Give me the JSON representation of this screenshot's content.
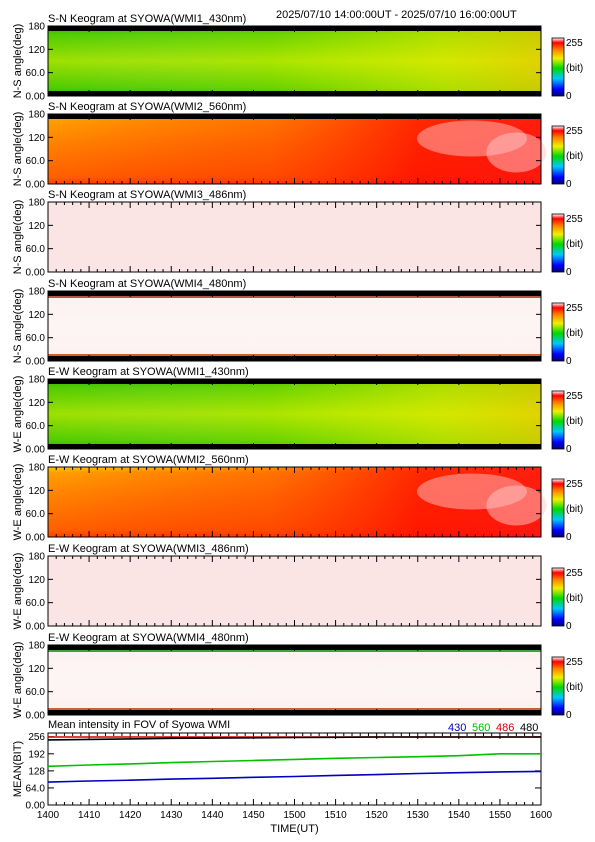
{
  "header": {
    "time_range": "2025/07/10 14:00:00UT - 2025/07/10 16:00:00UT"
  },
  "colors": {
    "wl_430": "#0000c0",
    "wl_560": "#00c000",
    "wl_486": "#d00000",
    "wl_480": "#000000"
  },
  "chart_data": [
    {
      "type": "heatmap",
      "title": "S-N Keogram at SYOWA(WMI1_430nm)",
      "ylabel": "N-S angle(deg)",
      "ylim": [
        0,
        180
      ],
      "yticks": [
        "0.00",
        "60.0",
        "120",
        "180"
      ],
      "xlim": [
        1400,
        1600
      ],
      "colorbar": {
        "min": "0",
        "max": "255",
        "unit": "(bit)"
      },
      "profile": "green",
      "bands": {
        "top": true,
        "bottom": true
      }
    },
    {
      "type": "heatmap",
      "title": "S-N Keogram at SYOWA(WMI2_560nm)",
      "ylabel": "N-S angle(deg)",
      "ylim": [
        0,
        180
      ],
      "yticks": [
        "0.00",
        "60.0",
        "120",
        "180"
      ],
      "xlim": [
        1400,
        1600
      ],
      "colorbar": {
        "min": "0",
        "max": "255",
        "unit": "(bit)"
      },
      "profile": "red",
      "bands": {
        "top": true,
        "bottom": false
      }
    },
    {
      "type": "heatmap",
      "title": "S-N Keogram at SYOWA(WMI3_486nm)",
      "ylabel": "N-S angle(deg)",
      "ylim": [
        0,
        180
      ],
      "yticks": [
        "0.00",
        "60.0",
        "120",
        "180"
      ],
      "xlim": [
        1400,
        1600
      ],
      "colorbar": {
        "min": "0",
        "max": "255",
        "unit": "(bit)"
      },
      "profile": "pink",
      "bands": {
        "top": false,
        "bottom": false
      }
    },
    {
      "type": "heatmap",
      "title": "S-N Keogram at SYOWA(WMI4_480nm)",
      "ylabel": "N-S angle(deg)",
      "ylim": [
        0,
        180
      ],
      "yticks": [
        "0.00",
        "60.0",
        "120",
        "180"
      ],
      "xlim": [
        1400,
        1600
      ],
      "colorbar": {
        "min": "0",
        "max": "255",
        "unit": "(bit)"
      },
      "profile": "white",
      "bands": {
        "top": true,
        "bottom": true
      }
    },
    {
      "type": "heatmap",
      "title": "E-W Keogram at SYOWA(WMI1_430nm)",
      "ylabel": "W-E angle(deg)",
      "ylim": [
        0,
        180
      ],
      "yticks": [
        "0.00",
        "60.0",
        "120",
        "180"
      ],
      "xlim": [
        1400,
        1600
      ],
      "colorbar": {
        "min": "0",
        "max": "255",
        "unit": "(bit)"
      },
      "profile": "green",
      "bands": {
        "top": true,
        "bottom": true
      }
    },
    {
      "type": "heatmap",
      "title": "E-W Keogram at SYOWA(WMI2_560nm)",
      "ylabel": "W-E angle(deg)",
      "ylim": [
        0,
        180
      ],
      "yticks": [
        "0.00",
        "60.0",
        "120",
        "180"
      ],
      "xlim": [
        1400,
        1600
      ],
      "colorbar": {
        "min": "0",
        "max": "255",
        "unit": "(bit)"
      },
      "profile": "red",
      "bands": {
        "top": false,
        "bottom": false
      }
    },
    {
      "type": "heatmap",
      "title": "E-W Keogram at SYOWA(WMI3_486nm)",
      "ylabel": "W-E angle(deg)",
      "ylim": [
        0,
        180
      ],
      "yticks": [
        "0.00",
        "60.0",
        "120",
        "180"
      ],
      "xlim": [
        1400,
        1600
      ],
      "colorbar": {
        "min": "0",
        "max": "255",
        "unit": "(bit)"
      },
      "profile": "pink",
      "bands": {
        "top": false,
        "bottom": false
      }
    },
    {
      "type": "heatmap",
      "title": "E-W Keogram at SYOWA(WMI4_480nm)",
      "ylabel": "W-E angle(deg)",
      "ylim": [
        0,
        180
      ],
      "yticks": [
        "0.00",
        "60.0",
        "120",
        "180"
      ],
      "xlim": [
        1400,
        1600
      ],
      "colorbar": {
        "min": "0",
        "max": "255",
        "unit": "(bit)"
      },
      "profile": "white",
      "bands": {
        "top": true,
        "bottom": true
      }
    },
    {
      "type": "line",
      "title": "Mean intensity in FOV of Syowa WMI",
      "ylabel": "MEAN(BIT)",
      "xlabel": "TIME(UT)",
      "xlim": [
        1400,
        1600
      ],
      "ylim": [
        0,
        270
      ],
      "yticks": [
        "0.00",
        "64.0",
        "128",
        "192",
        "256"
      ],
      "xticks": [
        "1400",
        "1410",
        "1420",
        "1430",
        "1440",
        "1450",
        "1500",
        "1510",
        "1520",
        "1530",
        "1540",
        "1550",
        "1600"
      ],
      "legend": [
        "430",
        "560",
        "486",
        "480"
      ],
      "x": [
        0,
        10,
        20,
        30,
        40,
        50,
        60,
        70,
        80,
        90,
        100,
        110,
        120
      ],
      "series": [
        {
          "name": "430",
          "color": "#0000c0",
          "values": [
            86,
            90,
            93,
            97,
            100,
            104,
            107,
            111,
            114,
            118,
            121,
            124,
            126
          ]
        },
        {
          "name": "560",
          "color": "#00c000",
          "values": [
            145,
            150,
            154,
            159,
            163,
            167,
            171,
            175,
            178,
            181,
            185,
            192,
            192
          ]
        },
        {
          "name": "486",
          "color": "#d00000",
          "values": [
            255,
            255,
            255,
            255,
            255,
            255,
            255,
            255,
            255,
            255,
            255,
            255,
            255
          ]
        },
        {
          "name": "480",
          "color": "#000000",
          "values": [
            244,
            246,
            248,
            250,
            251,
            252,
            253,
            254,
            255,
            255,
            255,
            255,
            255
          ]
        }
      ]
    }
  ]
}
